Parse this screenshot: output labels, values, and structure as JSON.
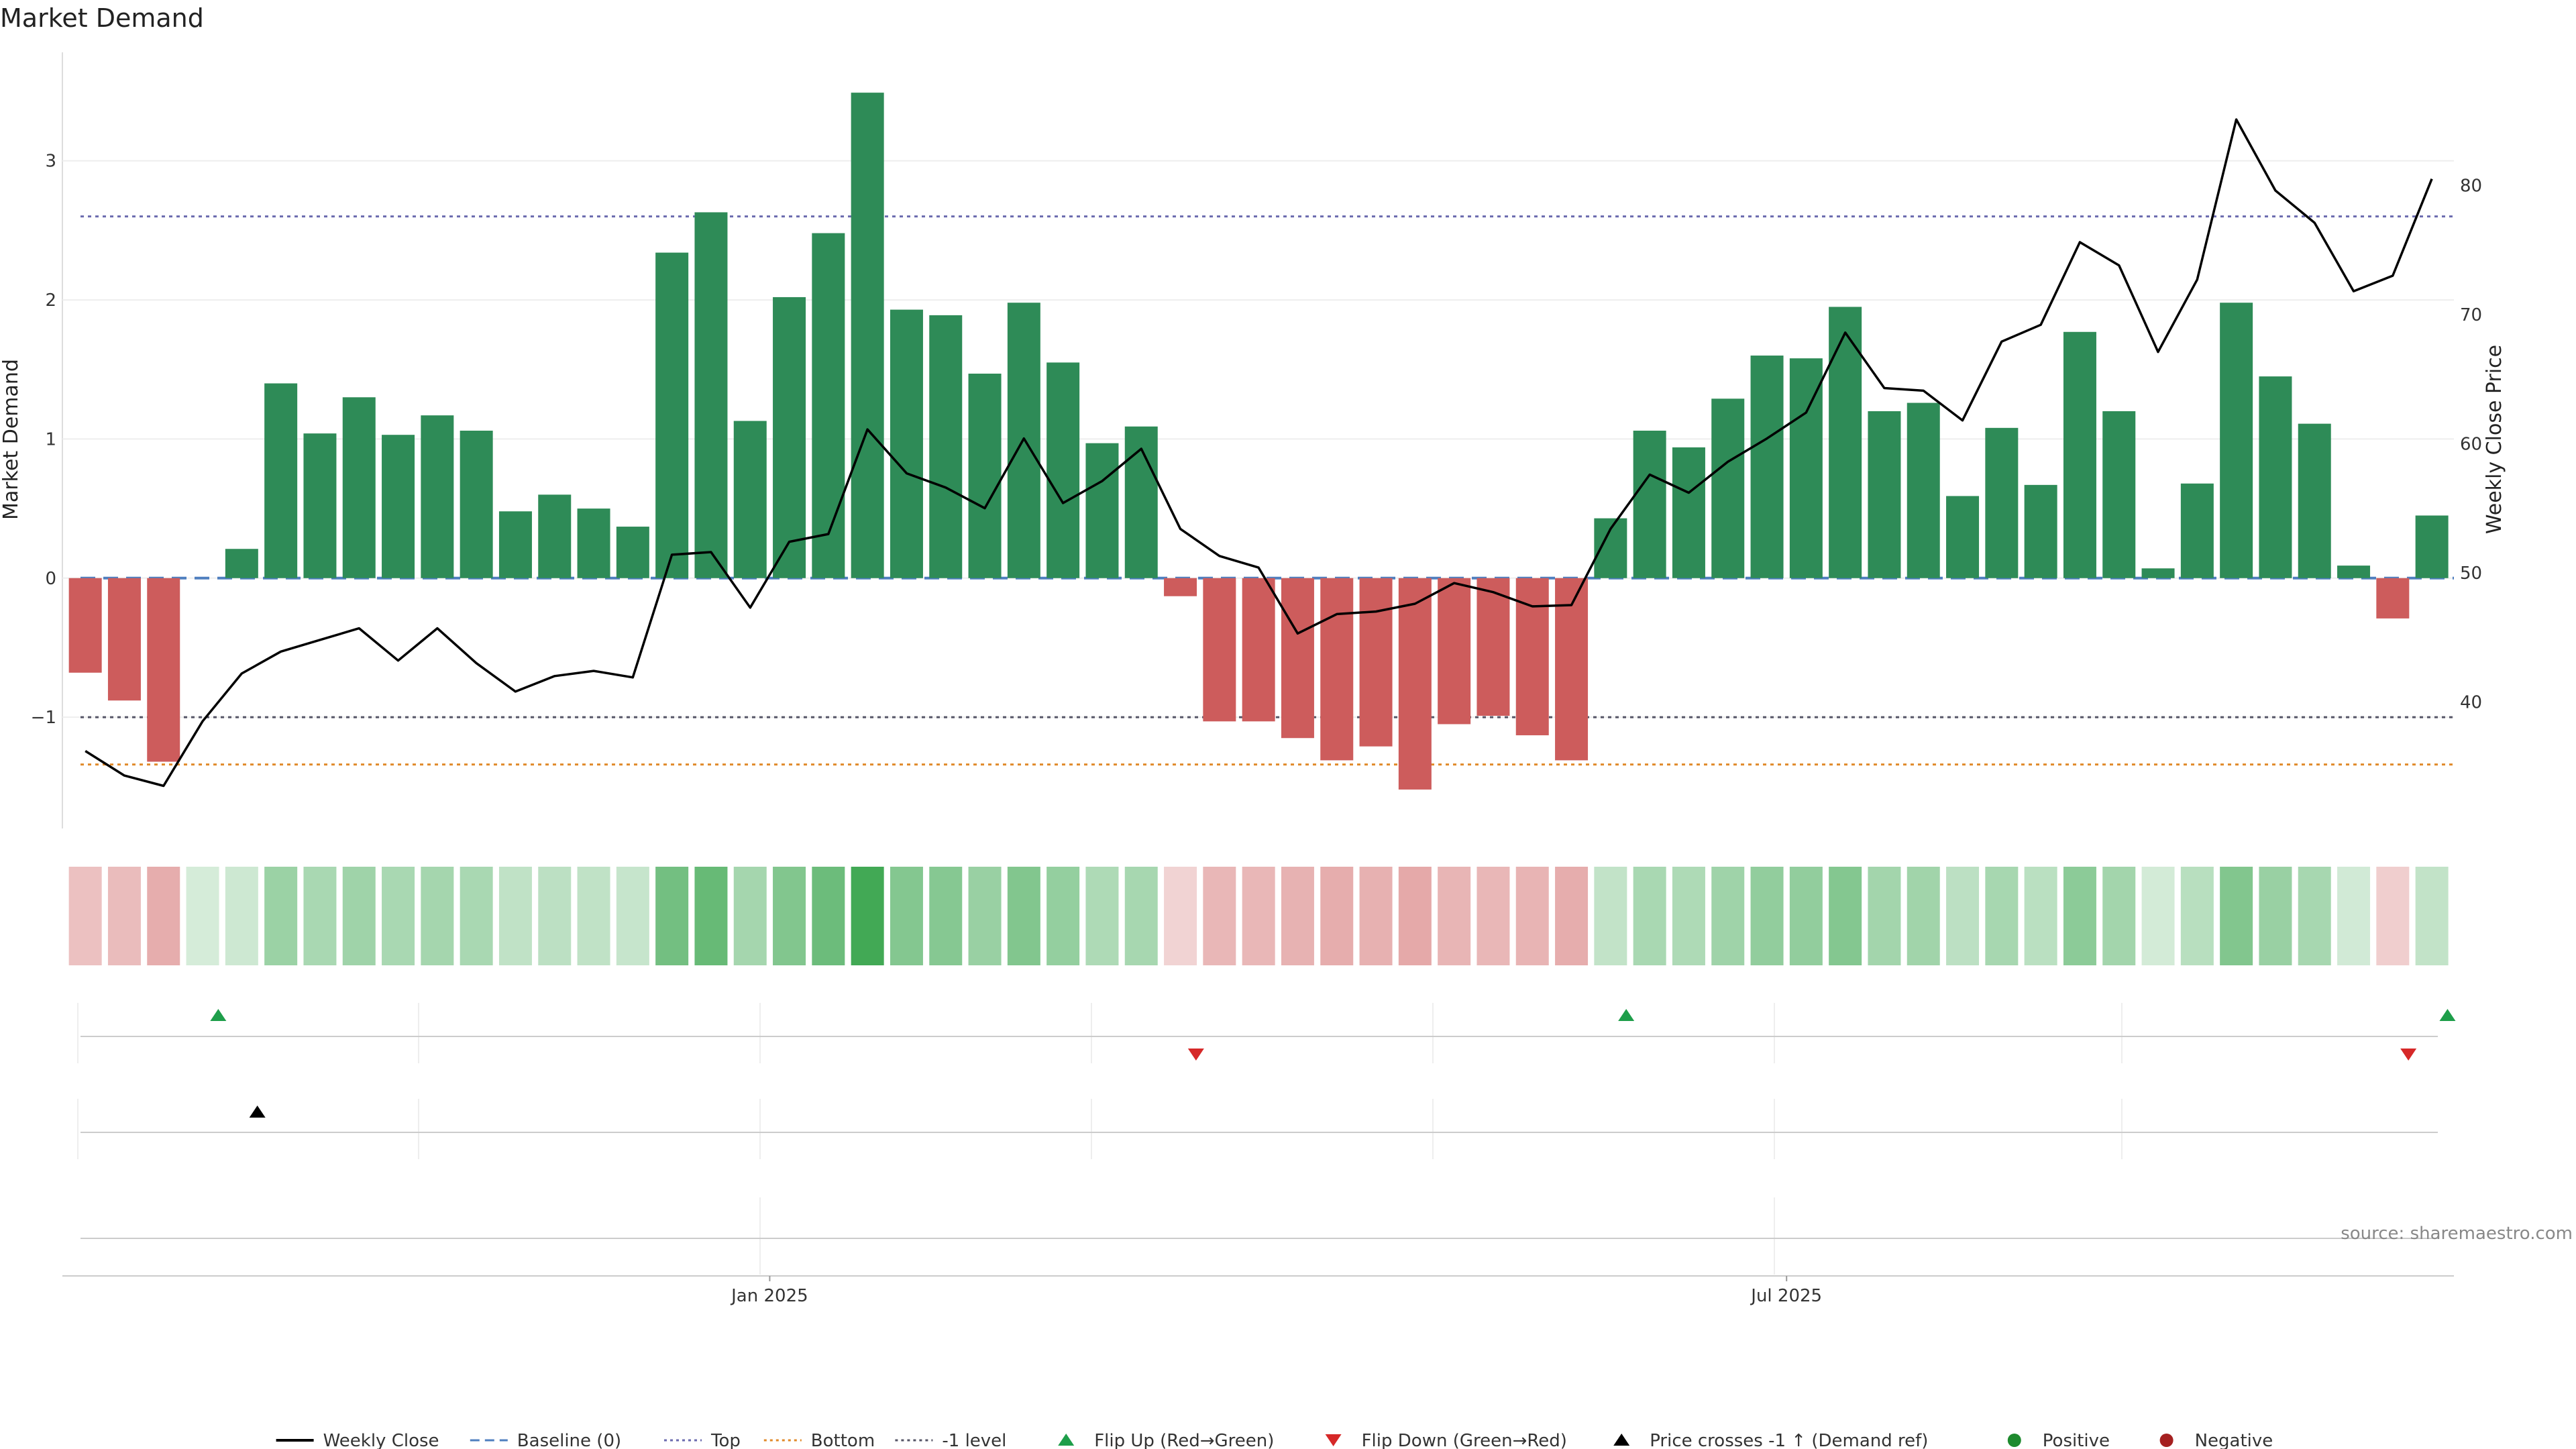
{
  "chart_data": {
    "type": "bar",
    "title": "Market Demand",
    "ylabel": "Market Demand",
    "y2label": "Weekly Close Price",
    "ylim": [
      -1.8,
      3.78
    ],
    "y2lim": [
      30.2,
      90.3
    ],
    "y_ticks": [
      -1,
      0,
      1,
      2,
      3
    ],
    "y_tick_labels": [
      "−1",
      "0",
      "1",
      "2",
      "3"
    ],
    "y2_ticks": [
      40,
      50,
      60,
      70,
      80
    ],
    "x_ticks": [
      {
        "index": 17.5,
        "label": "Jan 2025"
      },
      {
        "index": 43.5,
        "label": "Jul 2025"
      }
    ],
    "grid": true,
    "legend_position": "bottom",
    "source": "source: sharemaestro.com",
    "reference_lines": [
      {
        "name": "Baseline (0)",
        "value": 0,
        "color": "#4f7fbf",
        "style": "dashed"
      },
      {
        "name": "Top",
        "value": 2.6,
        "color": "#6b6baf",
        "style": "dotted"
      },
      {
        "name": "Bottom",
        "value": -1.34,
        "color": "#e08a2a",
        "style": "dotted"
      },
      {
        "name": "-1 level",
        "value": -1,
        "color": "#555566",
        "style": "dotted"
      }
    ],
    "series": [
      {
        "name": "Market Demand",
        "type": "bar",
        "positive_color": "#2e8b57",
        "negative_color": "#cd5c5c",
        "values": [
          -0.68,
          -0.88,
          -1.32,
          0.0,
          0.21,
          1.4,
          1.04,
          1.3,
          1.03,
          1.17,
          1.06,
          0.48,
          0.6,
          0.5,
          0.37,
          2.34,
          2.63,
          1.13,
          2.02,
          2.48,
          3.49,
          1.93,
          1.89,
          1.47,
          1.98,
          1.55,
          0.97,
          1.09,
          -0.13,
          -1.03,
          -1.03,
          -1.15,
          -1.31,
          -1.21,
          -1.52,
          -1.05,
          -0.99,
          -1.13,
          -1.31,
          0.43,
          1.06,
          0.94,
          1.29,
          1.6,
          1.58,
          1.95,
          1.2,
          1.26,
          0.59,
          1.08,
          0.67,
          1.77,
          1.2,
          0.07,
          0.68,
          1.98,
          1.45,
          1.11,
          0.09,
          -0.29,
          0.45
        ]
      },
      {
        "name": "Weekly Close",
        "type": "line",
        "axis": "right",
        "color": "#000000",
        "values": [
          36.2,
          34.3,
          33.5,
          38.5,
          42.2,
          43.9,
          44.8,
          45.7,
          43.2,
          45.7,
          43.0,
          40.8,
          42.0,
          42.4,
          41.9,
          51.4,
          51.6,
          47.3,
          52.4,
          53.0,
          61.1,
          57.7,
          56.6,
          55.0,
          60.4,
          55.4,
          57.1,
          59.6,
          53.4,
          51.3,
          50.4,
          45.3,
          46.8,
          47.0,
          47.6,
          49.2,
          48.5,
          47.4,
          47.5,
          53.4,
          57.6,
          56.2,
          58.6,
          60.4,
          62.4,
          68.6,
          64.3,
          64.1,
          61.8,
          67.9,
          69.2,
          75.6,
          73.8,
          67.1,
          72.7,
          85.1,
          79.6,
          77.1,
          71.8,
          73.0,
          80.5
        ]
      }
    ],
    "signal_rows": [
      {
        "name": "flip-signals",
        "markers": [
          {
            "index": 3.4,
            "type": "Flip Up (Red→Green)",
            "direction": "up",
            "color": "#1e9e4a"
          },
          {
            "index": 28.4,
            "type": "Flip Down (Green→Red)",
            "direction": "down",
            "color": "#d62828"
          },
          {
            "index": 39.4,
            "type": "Flip Up (Red→Green)",
            "direction": "up",
            "color": "#1e9e4a"
          },
          {
            "index": 59.4,
            "type": "Flip Down (Green→Red)",
            "direction": "down",
            "color": "#d62828"
          },
          {
            "index": 60.4,
            "type": "Flip Up (Red→Green)",
            "direction": "up",
            "color": "#1e9e4a"
          }
        ]
      },
      {
        "name": "price-cross-signals",
        "markers": [
          {
            "index": 4.4,
            "type": "Price crosses -1 ↑ (Demand ref)",
            "direction": "up",
            "color": "#000000"
          }
        ]
      },
      {
        "name": "dot-signals",
        "markers": []
      }
    ],
    "legend": [
      {
        "label": "Weekly Close",
        "kind": "line",
        "color": "#000000",
        "style": "solid"
      },
      {
        "label": "Baseline (0)",
        "kind": "line",
        "color": "#4f7fbf",
        "style": "dashed"
      },
      {
        "label": "Top",
        "kind": "line",
        "color": "#6b6baf",
        "style": "dotted"
      },
      {
        "label": "Bottom",
        "kind": "line",
        "color": "#e08a2a",
        "style": "dotted"
      },
      {
        "label": "-1 level",
        "kind": "line",
        "color": "#555566",
        "style": "dotted"
      },
      {
        "label": "Flip Up (Red→Green)",
        "kind": "tri-up",
        "color": "#1e9e4a"
      },
      {
        "label": "Flip Down (Green→Red)",
        "kind": "tri-down",
        "color": "#d62828"
      },
      {
        "label": "Price crosses -1 ↑ (Demand ref)",
        "kind": "tri-up",
        "color": "#000000"
      },
      {
        "label": "Positive",
        "kind": "dot",
        "color": "#1e8a2e"
      },
      {
        "label": "Negative",
        "kind": "dot",
        "color": "#a52020"
      }
    ]
  }
}
